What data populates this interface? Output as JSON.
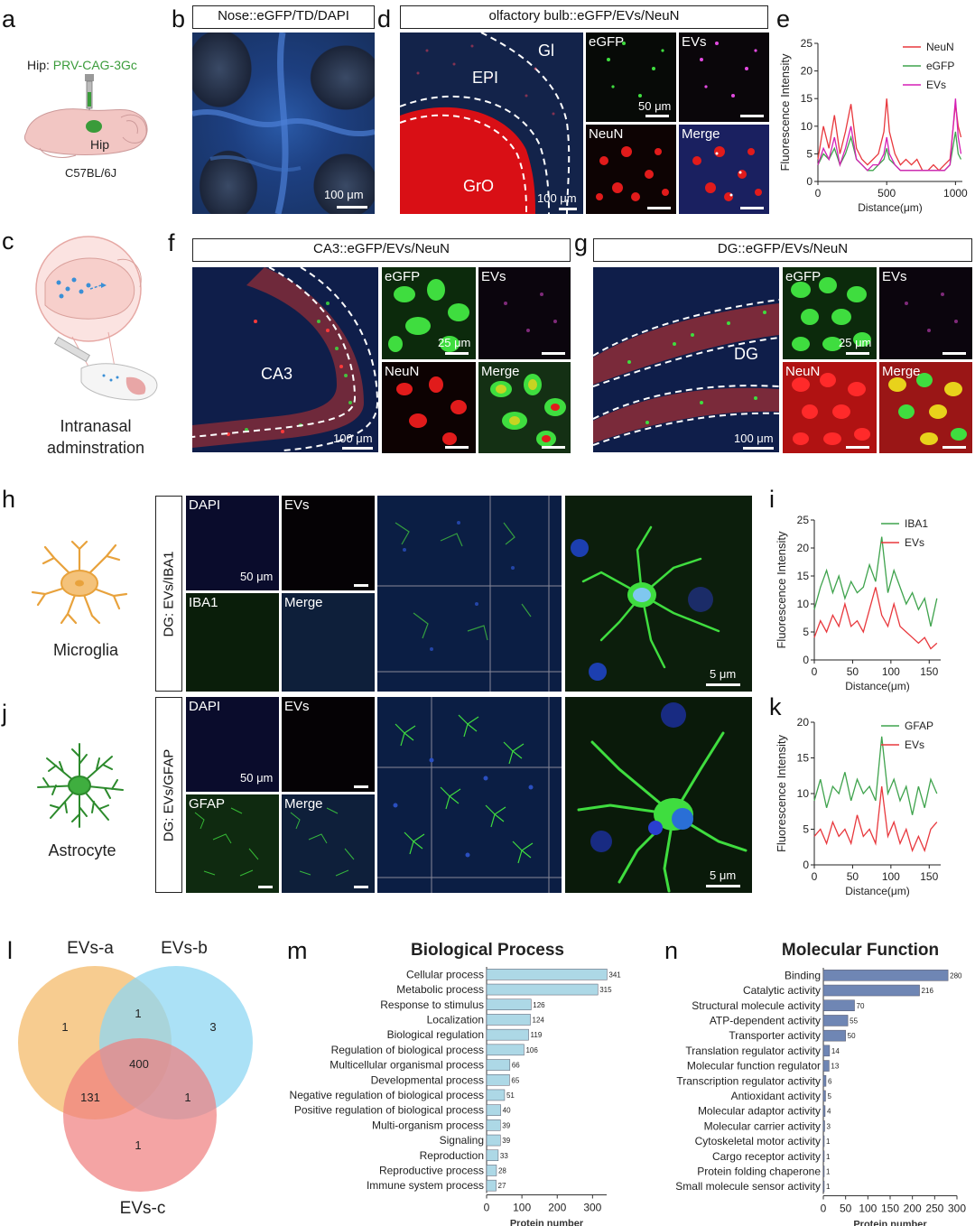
{
  "panels": {
    "a": {
      "letter": "a",
      "injection_prefix": "Hip: ",
      "injection_virus": "PRV-CAG-3Gc",
      "region": "Hip",
      "strain": "C57BL/6J"
    },
    "b": {
      "letter": "b",
      "title": "Nose::eGFP/TD/DAPI",
      "scale": "100 μm"
    },
    "c": {
      "letter": "c",
      "caption_line1": "Intranasal",
      "caption_line2": "adminstration"
    },
    "d": {
      "letter": "d",
      "title": "olfactory bulb::eGFP/EVs/NeuN",
      "regions": [
        "Gl",
        "EPI",
        "GrO"
      ],
      "scale_main": "100 μm",
      "scale_sub": "50 μm",
      "sub_labels": [
        "eGFP",
        "EVs",
        "NeuN",
        "Merge"
      ]
    },
    "f": {
      "letter": "f",
      "title": "CA3::eGFP/EVs/NeuN",
      "region": "CA3",
      "scale_main": "100 μm",
      "scale_sub": "25 μm",
      "sub_labels": [
        "eGFP",
        "EVs",
        "NeuN",
        "Merge"
      ]
    },
    "g": {
      "letter": "g",
      "title": "DG::eGFP/EVs/NeuN",
      "region": "DG",
      "scale_main": "100 μm",
      "scale_sub": "25 μm",
      "sub_labels": [
        "eGFP",
        "EVs",
        "NeuN",
        "Merge"
      ]
    },
    "h": {
      "letter": "h",
      "cell": "Microglia",
      "side_label": "DG: EVs/IBA1",
      "sub_labels": [
        "DAPI",
        "EVs",
        "IBA1",
        "Merge"
      ],
      "scale_sub": "50 μm",
      "scale_zoom": "5 μm"
    },
    "j": {
      "letter": "j",
      "cell": "Astrocyte",
      "side_label": "DG: EVs/GFAP",
      "sub_labels": [
        "DAPI",
        "EVs",
        "GFAP",
        "Merge"
      ],
      "scale_sub": "50 μm",
      "scale_zoom": "5 μm"
    },
    "l": {
      "letter": "l",
      "sets": [
        "EVs-a",
        "EVs-b",
        "EVs-c"
      ],
      "regions": {
        "a_only": "1",
        "b_only": "3",
        "c_only": "1",
        "ab": "1",
        "ac": "131",
        "bc": "1",
        "abc": "400"
      }
    },
    "i_letter": "i",
    "k_letter": "k",
    "e_letter": "e",
    "m_letter": "m",
    "n_letter": "n"
  },
  "chart_data": [
    {
      "id": "e",
      "type": "line",
      "xlabel": "Distance(μm)",
      "ylabel": "Fluorescence Intensity",
      "xlim": [
        0,
        1050
      ],
      "ylim": [
        0,
        25
      ],
      "xticks": [
        0,
        500,
        1000
      ],
      "yticks": [
        0,
        5,
        10,
        15,
        20,
        25
      ],
      "legend_position": "top-right",
      "series": [
        {
          "name": "NeuN",
          "color": "#e8383d",
          "x": [
            0,
            40,
            80,
            120,
            160,
            200,
            240,
            280,
            320,
            360,
            400,
            440,
            480,
            500,
            520,
            560,
            600,
            640,
            680,
            720,
            760,
            800,
            840,
            880,
            920,
            960,
            1000,
            1020,
            1040
          ],
          "values": [
            4,
            10,
            6,
            12,
            5,
            9,
            14,
            6,
            4,
            3,
            4,
            5,
            9,
            15,
            9,
            5,
            3,
            4,
            3,
            4,
            2,
            2,
            3,
            2,
            3,
            4,
            14,
            10,
            8
          ]
        },
        {
          "name": "eGFP",
          "color": "#3fa34d",
          "x": [
            0,
            40,
            80,
            120,
            160,
            200,
            240,
            280,
            320,
            360,
            400,
            440,
            480,
            500,
            520,
            560,
            600,
            640,
            680,
            720,
            760,
            800,
            840,
            880,
            920,
            960,
            1000,
            1020,
            1040
          ],
          "values": [
            3,
            5,
            4,
            6,
            3,
            5,
            8,
            4,
            3,
            2,
            2,
            3,
            4,
            6,
            4,
            3,
            2,
            2,
            2,
            2,
            2,
            2,
            2,
            2,
            2,
            3,
            9,
            5,
            4
          ]
        },
        {
          "name": "EVs",
          "color": "#d51fb5",
          "x": [
            0,
            40,
            80,
            120,
            160,
            200,
            240,
            280,
            320,
            360,
            400,
            440,
            480,
            500,
            520,
            560,
            600,
            640,
            680,
            720,
            760,
            800,
            840,
            880,
            920,
            960,
            1000,
            1020,
            1040
          ],
          "values": [
            3,
            6,
            4,
            8,
            3,
            6,
            10,
            4,
            3,
            2,
            3,
            3,
            5,
            8,
            5,
            3,
            2,
            2,
            2,
            2,
            2,
            2,
            2,
            2,
            2,
            3,
            15,
            8,
            5
          ]
        }
      ]
    },
    {
      "id": "i",
      "type": "line",
      "xlabel": "Distance(μm)",
      "ylabel": "Fluorescence Intensity",
      "xlim": [
        0,
        165
      ],
      "ylim": [
        0,
        25
      ],
      "xticks": [
        0,
        50,
        100,
        150
      ],
      "yticks": [
        0,
        5,
        10,
        15,
        20,
        25
      ],
      "legend_position": "top-right",
      "series": [
        {
          "name": "IBA1",
          "color": "#3fa34d",
          "x": [
            0,
            8,
            16,
            24,
            32,
            40,
            48,
            56,
            64,
            72,
            80,
            88,
            96,
            104,
            112,
            120,
            128,
            136,
            144,
            152,
            160
          ],
          "values": [
            9,
            13,
            16,
            12,
            15,
            11,
            14,
            12,
            13,
            17,
            14,
            22,
            12,
            16,
            13,
            10,
            12,
            9,
            11,
            6,
            11
          ]
        },
        {
          "name": "EVs",
          "color": "#e8383d",
          "x": [
            0,
            8,
            16,
            24,
            32,
            40,
            48,
            56,
            64,
            72,
            80,
            88,
            96,
            104,
            112,
            120,
            128,
            136,
            144,
            152,
            160
          ],
          "values": [
            4,
            7,
            5,
            8,
            6,
            10,
            6,
            7,
            5,
            9,
            13,
            8,
            6,
            10,
            6,
            5,
            4,
            3,
            4,
            2,
            3
          ]
        }
      ]
    },
    {
      "id": "k",
      "type": "line",
      "xlabel": "Distance(μm)",
      "ylabel": "Fluorescence Intensity",
      "xlim": [
        0,
        165
      ],
      "ylim": [
        0,
        20
      ],
      "xticks": [
        0,
        50,
        100,
        150
      ],
      "yticks": [
        0,
        5,
        10,
        15,
        20
      ],
      "legend_position": "top-right",
      "series": [
        {
          "name": "GFAP",
          "color": "#3fa34d",
          "x": [
            0,
            8,
            16,
            24,
            32,
            40,
            48,
            56,
            64,
            72,
            80,
            88,
            96,
            104,
            112,
            120,
            128,
            136,
            144,
            152,
            160
          ],
          "values": [
            9,
            12,
            8,
            11,
            10,
            13,
            9,
            12,
            10,
            11,
            9,
            18,
            10,
            12,
            9,
            11,
            7,
            11,
            8,
            12,
            10
          ]
        },
        {
          "name": "EVs",
          "color": "#e8383d",
          "x": [
            0,
            8,
            16,
            24,
            32,
            40,
            48,
            56,
            64,
            72,
            80,
            88,
            96,
            104,
            112,
            120,
            128,
            136,
            144,
            152,
            160
          ],
          "values": [
            4,
            5,
            3,
            6,
            4,
            5,
            3,
            7,
            4,
            5,
            3,
            11,
            4,
            6,
            3,
            5,
            2,
            4,
            2,
            5,
            6
          ]
        }
      ]
    },
    {
      "id": "m",
      "type": "bar",
      "orientation": "horizontal",
      "title": "Biological Process",
      "xlabel": "Protein number",
      "xlim": [
        0,
        340
      ],
      "xticks": [
        0,
        100,
        200,
        300
      ],
      "color": "#add8e6",
      "categories": [
        "Cellular process",
        "Metabolic process",
        "Response to stimulus",
        "Localization",
        "Biological regulation",
        "Regulation of biological process",
        "Multicellular organismal process",
        "Developmental process",
        "Negative regulation of biological process",
        "Positive regulation of biological process",
        "Multi-organism process",
        "Signaling",
        "Reproduction",
        "Reproductive process",
        "Immune system process"
      ],
      "values": [
        341,
        315,
        126,
        124,
        119,
        106,
        66,
        65,
        51,
        40,
        39,
        39,
        33,
        28,
        27
      ]
    },
    {
      "id": "n",
      "type": "bar",
      "orientation": "horizontal",
      "title": "Molecular Function",
      "xlabel": "Protein number",
      "xlim": [
        0,
        300
      ],
      "xticks": [
        0,
        50,
        100,
        150,
        200,
        250,
        300
      ],
      "color": "#6f86b4",
      "categories": [
        "Binding",
        "Catalytic activity",
        "Structural molecule activity",
        "ATP-dependent activity",
        "Transporter activity",
        "Translation regulator activity",
        "Molecular function regulator",
        "Transcription regulator activity",
        "Antioxidant activity",
        "Molecular adaptor activity",
        "Molecular carrier activity",
        "Cytoskeletal motor activity",
        "Cargo receptor activity",
        "Protein folding chaperone",
        "Small molecule sensor activity"
      ],
      "values": [
        280,
        216,
        70,
        55,
        50,
        14,
        13,
        6,
        5,
        4,
        3,
        1,
        1,
        1,
        1
      ]
    }
  ]
}
